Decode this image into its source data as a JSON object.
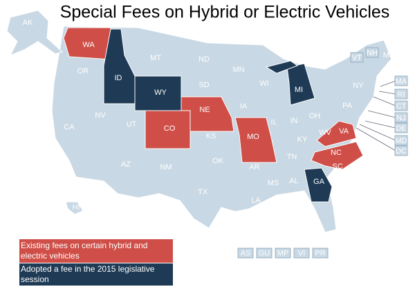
{
  "title": "Special Fees on Hybrid or Electric Vehicles",
  "state_color": "#c8d8e4",
  "legend": [
    {
      "label": "Existing fees on certain hybrid and electric vehicles",
      "color": "#cf4f48",
      "states": [
        "WA",
        "CO",
        "NE",
        "MO",
        "VA",
        "NC"
      ]
    },
    {
      "label": "Adopted a fee in the 2015 legislative session",
      "color": "#1e3a55",
      "states": [
        "ID",
        "WY",
        "MI",
        "GA"
      ]
    }
  ],
  "other_states": [
    "AK",
    "OR",
    "MT",
    "ND",
    "MN",
    "SD",
    "WI",
    "NY",
    "ME",
    "PA",
    "IA",
    "IL",
    "IN",
    "OH",
    "WV",
    "NV",
    "UT",
    "CA",
    "KS",
    "KY",
    "AZ",
    "NM",
    "OK",
    "AR",
    "TN",
    "SC",
    "MS",
    "AL",
    "TX",
    "LA",
    "FL",
    "HI"
  ],
  "boxed_states": [
    "VT",
    "NH",
    "MA",
    "RI",
    "CT",
    "NJ",
    "DE",
    "MD",
    "DC"
  ],
  "territories": [
    "AS",
    "GU",
    "MP",
    "VI",
    "PR"
  ]
}
